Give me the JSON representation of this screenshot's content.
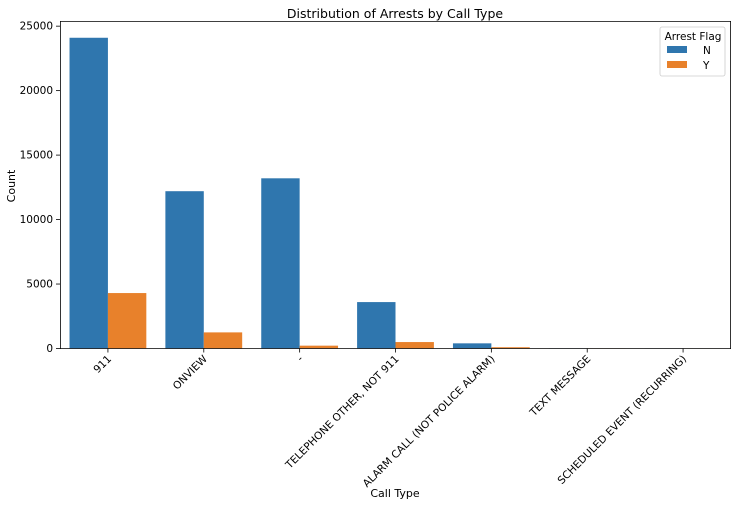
{
  "chart_data": {
    "type": "bar",
    "title": "Distribution of Arrests by Call Type",
    "xlabel": "Call Type",
    "ylabel": "Count",
    "ylim": [
      0,
      25400
    ],
    "yticks": [
      0,
      5000,
      10000,
      15000,
      20000,
      25000
    ],
    "categories": [
      "911",
      "ONVIEW",
      "-",
      "TELEPHONE OTHER, NOT 911",
      "ALARM CALL (NOT POLICE ALARM)",
      "TEXT MESSAGE",
      "SCHEDULED EVENT (RECURRING)"
    ],
    "legend": {
      "title": "Arrest Flag",
      "position": "top-right"
    },
    "series": [
      {
        "name": "N",
        "color": "#2f76ae",
        "values": [
          24100,
          12200,
          13200,
          3600,
          400,
          10,
          5
        ]
      },
      {
        "name": "Y",
        "color": "#e8812b",
        "values": [
          4300,
          1250,
          220,
          500,
          100,
          5,
          2
        ]
      }
    ]
  }
}
